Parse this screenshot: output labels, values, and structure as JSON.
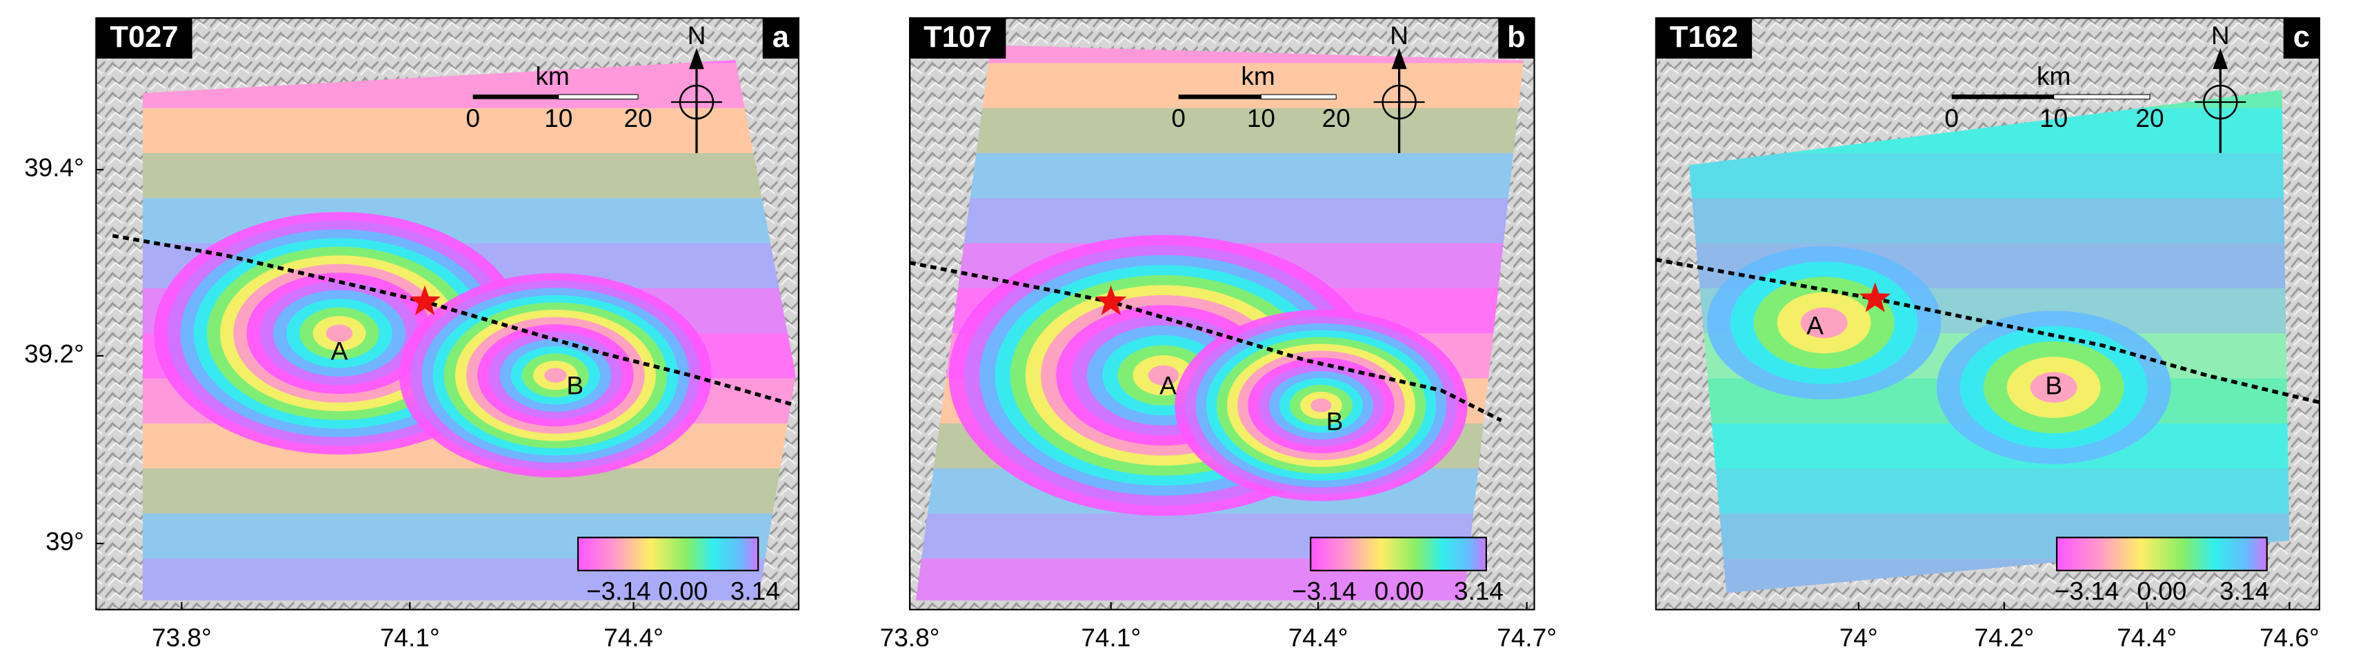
{
  "panels": [
    {
      "track": "T027",
      "letter": "a",
      "north": "N",
      "scale_unit": "km",
      "scale_labels": [
        "0",
        "10",
        "20"
      ],
      "points": [
        "A",
        "B"
      ],
      "colorbar_labels": [
        "−3.14",
        "0.00",
        "3.14"
      ],
      "lat_labels": [
        "39.4°",
        "39.2°",
        "39°"
      ],
      "lon_labels": [
        "73.8°",
        "74.1°",
        "74.4°"
      ]
    },
    {
      "track": "T107",
      "letter": "b",
      "north": "N",
      "scale_unit": "km",
      "scale_labels": [
        "0",
        "10",
        "20"
      ],
      "points": [
        "A",
        "B"
      ],
      "colorbar_labels": [
        "−3.14",
        "0.00",
        "3.14"
      ],
      "lon_labels": [
        "73.8°",
        "74.1°",
        "74.4°",
        "74.7°"
      ]
    },
    {
      "track": "T162",
      "letter": "c",
      "north": "N",
      "scale_unit": "km",
      "scale_labels": [
        "0",
        "10",
        "20"
      ],
      "points": [
        "A",
        "B"
      ],
      "colorbar_labels": [
        "−3.14",
        "0.00",
        "3.14"
      ],
      "lon_labels": [
        "74°",
        "74.2°",
        "74.4°",
        "74.6°"
      ]
    }
  ]
}
